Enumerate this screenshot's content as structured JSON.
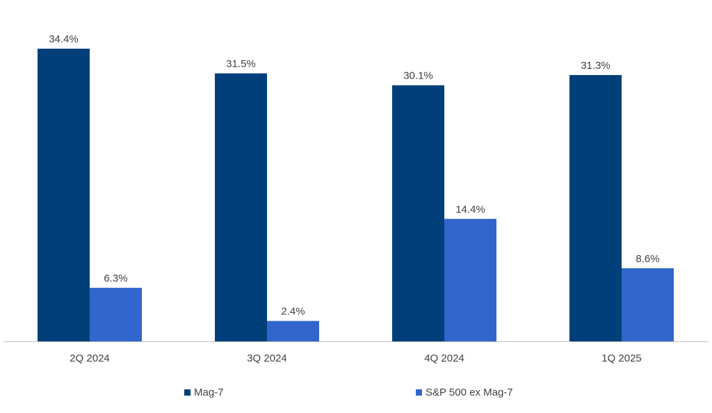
{
  "chart_data": {
    "type": "bar",
    "title": "",
    "xlabel": "",
    "ylabel": "",
    "categories": [
      "2Q 2024",
      "3Q 2024",
      "4Q 2024",
      "1Q 2025"
    ],
    "series": [
      {
        "name": "Mag-7",
        "color": "#003f7a",
        "values": [
          34.4,
          31.5,
          30.1,
          31.3
        ],
        "labels": [
          "34.4%",
          "31.5%",
          "30.1%",
          "31.3%"
        ]
      },
      {
        "name": "S&P 500 ex Mag-7",
        "color": "#3366cc",
        "values": [
          6.3,
          2.4,
          14.4,
          8.6
        ],
        "labels": [
          "6.3%",
          "2.4%",
          "14.4%",
          "8.6%"
        ]
      }
    ],
    "ylim": [
      0,
      34.4
    ],
    "grid": false,
    "legend_position": "bottom",
    "axis_color": "#bfbfbf"
  }
}
